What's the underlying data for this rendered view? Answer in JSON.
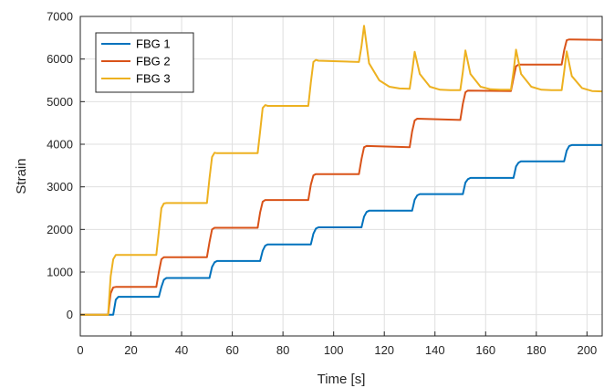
{
  "chart_data": {
    "type": "line",
    "title": "",
    "xlabel": "Time [s]",
    "ylabel": "Strain",
    "xlim": [
      0,
      206
    ],
    "ylim": [
      -500,
      7000
    ],
    "xticks": [
      0,
      20,
      40,
      60,
      80,
      100,
      120,
      140,
      160,
      180,
      200
    ],
    "yticks": [
      0,
      1000,
      2000,
      3000,
      4000,
      5000,
      6000,
      7000
    ],
    "grid": true,
    "legend_position": "top-left",
    "series": [
      {
        "name": "FBG 1",
        "color": "#0072BD",
        "x": [
          0,
          13,
          14,
          15,
          31,
          32,
          33,
          34,
          51,
          52,
          53,
          54,
          71,
          72,
          73,
          74,
          91,
          92,
          93,
          94,
          111,
          112,
          113,
          114,
          131,
          132,
          133,
          134,
          151,
          152,
          153,
          154,
          171,
          172,
          173,
          174,
          191,
          192,
          193,
          194,
          206
        ],
        "y": [
          0,
          0,
          350,
          420,
          420,
          650,
          820,
          860,
          860,
          1120,
          1230,
          1260,
          1260,
          1500,
          1620,
          1650,
          1650,
          1900,
          2020,
          2050,
          2050,
          2300,
          2410,
          2440,
          2440,
          2700,
          2800,
          2830,
          2830,
          3100,
          3180,
          3210,
          3210,
          3480,
          3570,
          3600,
          3600,
          3850,
          3960,
          3980,
          3980
        ]
      },
      {
        "name": "FBG 2",
        "color": "#D95319",
        "x": [
          0,
          11,
          12,
          13,
          14,
          30,
          31,
          32,
          33,
          50,
          51,
          52,
          53,
          70,
          71,
          72,
          73,
          90,
          91,
          92,
          93,
          110,
          111,
          112,
          113,
          130,
          131,
          132,
          133,
          150,
          151,
          152,
          153,
          170,
          171,
          172,
          173,
          190,
          191,
          192,
          193,
          206
        ],
        "y": [
          0,
          0,
          500,
          640,
          650,
          650,
          1000,
          1300,
          1350,
          1350,
          1700,
          2000,
          2040,
          2040,
          2400,
          2650,
          2690,
          2690,
          3050,
          3270,
          3300,
          3300,
          3650,
          3930,
          3960,
          3930,
          4300,
          4560,
          4600,
          4570,
          4950,
          5220,
          5260,
          5250,
          5550,
          5830,
          5870,
          5870,
          6200,
          6440,
          6460,
          6450
        ]
      },
      {
        "name": "FBG 3",
        "color": "#EDB120",
        "x": [
          0,
          11,
          12,
          13,
          14,
          30,
          31,
          32,
          33,
          34,
          50,
          51,
          52,
          53,
          54,
          70,
          71,
          72,
          73,
          74,
          90,
          91,
          92,
          93,
          94,
          110,
          111,
          112,
          114,
          118,
          122,
          126,
          130,
          131,
          132,
          134,
          138,
          142,
          146,
          150,
          151,
          152,
          154,
          158,
          162,
          166,
          170,
          171,
          172,
          174,
          178,
          182,
          186,
          190,
          191,
          192,
          194,
          198,
          202,
          206
        ],
        "y": [
          0,
          0,
          900,
          1300,
          1400,
          1400,
          1950,
          2500,
          2610,
          2620,
          2620,
          3200,
          3700,
          3800,
          3790,
          3790,
          4300,
          4850,
          4920,
          4900,
          4900,
          5450,
          5930,
          5980,
          5960,
          5930,
          6300,
          6780,
          5900,
          5500,
          5350,
          5310,
          5300,
          5700,
          6170,
          5650,
          5350,
          5280,
          5270,
          5270,
          5700,
          6200,
          5650,
          5350,
          5290,
          5280,
          5280,
          5700,
          6220,
          5650,
          5350,
          5280,
          5270,
          5270,
          5700,
          6180,
          5600,
          5320,
          5250,
          5240
        ]
      }
    ]
  }
}
